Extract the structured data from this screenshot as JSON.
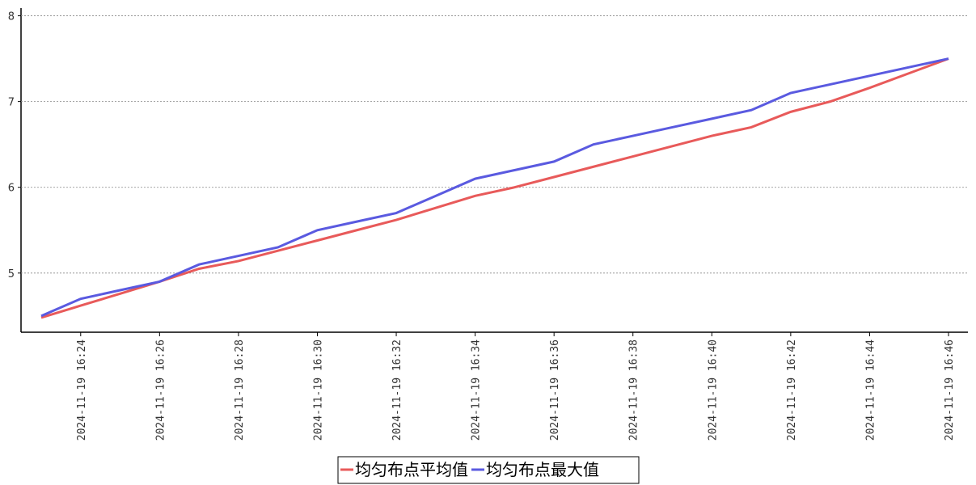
{
  "chart_data": {
    "type": "line",
    "categories": [
      null,
      "2024-11-19 16:24",
      null,
      "2024-11-19 16:26",
      null,
      "2024-11-19 16:28",
      null,
      "2024-11-19 16:30",
      null,
      "2024-11-19 16:32",
      null,
      "2024-11-19 16:34",
      null,
      "2024-11-19 16:36",
      null,
      "2024-11-19 16:38",
      null,
      "2024-11-19 16:40",
      null,
      "2024-11-19 16:42",
      null,
      "2024-11-19 16:44",
      null,
      "2024-11-19 16:46"
    ],
    "series": [
      {
        "name": "均匀布点平均值",
        "color": "#e85a5a",
        "values": [
          4.48,
          4.62,
          4.76,
          4.9,
          5.05,
          5.14,
          5.26,
          5.38,
          5.5,
          5.62,
          5.76,
          5.9,
          6.0,
          6.12,
          6.24,
          6.36,
          6.48,
          6.6,
          6.7,
          6.88,
          7.0,
          7.16,
          7.33,
          7.5
        ]
      },
      {
        "name": "均匀布点最大值",
        "color": "#5a5ae0",
        "values": [
          4.5,
          4.7,
          4.8,
          4.9,
          5.1,
          5.2,
          5.3,
          5.5,
          5.6,
          5.7,
          5.9,
          6.1,
          6.2,
          6.3,
          6.5,
          6.6,
          6.7,
          6.8,
          6.9,
          7.1,
          7.2,
          7.3,
          7.4,
          7.5
        ]
      }
    ],
    "ylim": [
      4.31,
      8.09
    ],
    "yticks": [
      5,
      6,
      7,
      8
    ],
    "grid": true
  }
}
